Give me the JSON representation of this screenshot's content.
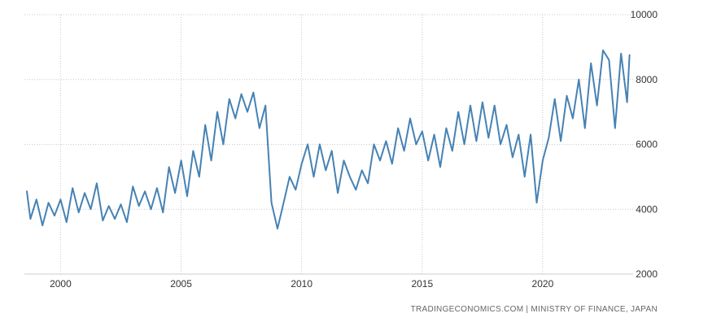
{
  "source_label": "TRADINGECONOMICS.COM  |  MINISTRY OF FINANCE, JAPAN",
  "colors": {
    "line": "#4682b4",
    "grid": "#c8c8c8",
    "text": "#333333"
  },
  "chart_data": {
    "type": "line",
    "grid": true,
    "legend": "none",
    "xlim": [
      1998.5,
      2023.75
    ],
    "ylim": [
      2000,
      10000
    ],
    "x_ticks": [
      2000,
      2005,
      2010,
      2015,
      2020
    ],
    "x_tick_labels": [
      "2000",
      "2005",
      "2010",
      "2015",
      "2020"
    ],
    "y_ticks": [
      2000,
      4000,
      6000,
      8000,
      10000
    ],
    "y_tick_labels": [
      "2000",
      "4000",
      "6000",
      "8000",
      "10000"
    ],
    "series": [
      {
        "x": [
          1998.6,
          1998.75,
          1999.0,
          1999.25,
          1999.5,
          1999.75,
          2000.0,
          2000.25,
          2000.5,
          2000.75,
          2001.0,
          2001.25,
          2001.5,
          2001.75,
          2002.0,
          2002.25,
          2002.5,
          2002.75,
          2003.0,
          2003.25,
          2003.5,
          2003.75,
          2004.0,
          2004.25,
          2004.5,
          2004.75,
          2005.0,
          2005.25,
          2005.5,
          2005.75,
          2006.0,
          2006.25,
          2006.5,
          2006.75,
          2007.0,
          2007.25,
          2007.5,
          2007.75,
          2008.0,
          2008.25,
          2008.5,
          2008.75,
          2009.0,
          2009.25,
          2009.5,
          2009.75,
          2010.0,
          2010.25,
          2010.5,
          2010.75,
          2011.0,
          2011.25,
          2011.5,
          2011.75,
          2012.0,
          2012.25,
          2012.5,
          2012.75,
          2013.0,
          2013.25,
          2013.5,
          2013.75,
          2014.0,
          2014.25,
          2014.5,
          2014.75,
          2015.0,
          2015.25,
          2015.5,
          2015.75,
          2016.0,
          2016.25,
          2016.5,
          2016.75,
          2017.0,
          2017.25,
          2017.5,
          2017.75,
          2018.0,
          2018.25,
          2018.5,
          2018.75,
          2019.0,
          2019.25,
          2019.5,
          2019.75,
          2020.0,
          2020.25,
          2020.5,
          2020.75,
          2021.0,
          2021.25,
          2021.5,
          2021.75,
          2022.0,
          2022.25,
          2022.5,
          2022.75,
          2023.0,
          2023.25,
          2023.5,
          2023.6
        ],
        "y": [
          4550,
          3700,
          4300,
          3500,
          4200,
          3800,
          4300,
          3600,
          4650,
          3900,
          4500,
          4000,
          4800,
          3650,
          4100,
          3700,
          4150,
          3600,
          4700,
          4100,
          4550,
          4000,
          4650,
          3900,
          5300,
          4500,
          5500,
          4400,
          5800,
          5000,
          6600,
          5500,
          7000,
          6000,
          7400,
          6800,
          7550,
          7000,
          7600,
          6500,
          7200,
          4200,
          3400,
          4200,
          5000,
          4600,
          5400,
          6000,
          5000,
          6000,
          5200,
          5800,
          4500,
          5500,
          5000,
          4600,
          5200,
          4800,
          6000,
          5500,
          6100,
          5400,
          6500,
          5800,
          6800,
          6000,
          6400,
          5500,
          6300,
          5300,
          6500,
          5800,
          7000,
          6000,
          7200,
          6100,
          7300,
          6200,
          7200,
          6000,
          6600,
          5600,
          6300,
          5000,
          6300,
          4200,
          5500,
          6200,
          7400,
          6100,
          7500,
          6800,
          8000,
          6500,
          8500,
          7200,
          8900,
          8600,
          6500,
          8800,
          7300,
          8750
        ]
      }
    ]
  }
}
